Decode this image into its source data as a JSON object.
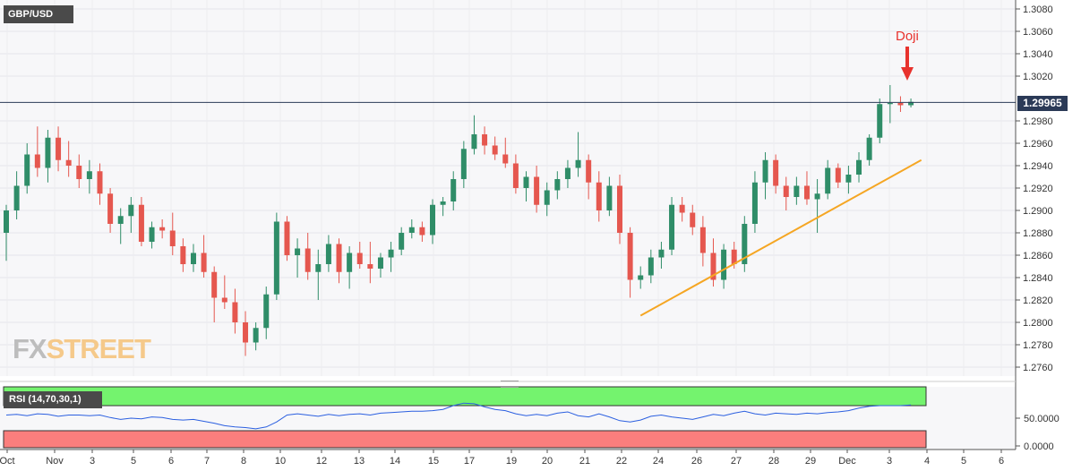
{
  "header": {
    "pair": "GBP/USD"
  },
  "price_tag": "1.29965",
  "annotation": {
    "label": "Doji",
    "color": "#e8322d"
  },
  "logo": {
    "part1": "FX",
    "part2": "STREET"
  },
  "rsi": {
    "label": "RSI (14,70,30,1)",
    "ticks": [
      "50.0000",
      "0.0000"
    ]
  },
  "colors": {
    "bull": "#2f8d68",
    "bear": "#e5574f",
    "trendline": "#f5a623",
    "rsi_line": "#2b5fe0",
    "overbought": "#74f36e",
    "oversold": "#fb7e7d"
  },
  "chart_data": {
    "type": "candlestick",
    "y_ticks": [
      "1.3080",
      "1.3060",
      "1.3040",
      "1.3020",
      "1.2980",
      "1.2960",
      "1.2940",
      "1.2920",
      "1.2900",
      "1.2880",
      "1.2860",
      "1.2840",
      "1.2820",
      "1.2800",
      "1.2780",
      "1.2760"
    ],
    "ylim": [
      1.2752,
      1.3088
    ],
    "x_labels": [
      "Oct",
      "Nov",
      "3",
      "5",
      "6",
      "7",
      "8",
      "10",
      "12",
      "13",
      "14",
      "15",
      "17",
      "19",
      "20",
      "21",
      "22",
      "24",
      "26",
      "27",
      "28",
      "29",
      "Dec",
      "3",
      "4",
      "5",
      "6"
    ],
    "last_price": 1.29965,
    "candles": [
      [
        1.288,
        1.2905,
        1.2855,
        1.29
      ],
      [
        1.29,
        1.2935,
        1.2892,
        1.2922
      ],
      [
        1.2922,
        1.296,
        1.2915,
        1.295
      ],
      [
        1.295,
        1.2975,
        1.293,
        1.2938
      ],
      [
        1.2938,
        1.2972,
        1.2925,
        1.2965
      ],
      [
        1.2965,
        1.2975,
        1.2935,
        1.2945
      ],
      [
        1.2945,
        1.2962,
        1.293,
        1.294
      ],
      [
        1.294,
        1.295,
        1.292,
        1.2928
      ],
      [
        1.2928,
        1.2945,
        1.2915,
        1.2935
      ],
      [
        1.2935,
        1.2942,
        1.2905,
        1.2915
      ],
      [
        1.2915,
        1.292,
        1.288,
        1.2888
      ],
      [
        1.2888,
        1.2902,
        1.287,
        1.2895
      ],
      [
        1.2895,
        1.2912,
        1.288,
        1.2905
      ],
      [
        1.2905,
        1.2912,
        1.2868,
        1.2872
      ],
      [
        1.2872,
        1.289,
        1.2866,
        1.2885
      ],
      [
        1.2885,
        1.2892,
        1.2875,
        1.2882
      ],
      [
        1.2882,
        1.2898,
        1.286,
        1.2868
      ],
      [
        1.2868,
        1.2875,
        1.2845,
        1.2852
      ],
      [
        1.2852,
        1.287,
        1.2845,
        1.2862
      ],
      [
        1.2862,
        1.2878,
        1.284,
        1.2845
      ],
      [
        1.2845,
        1.285,
        1.28,
        1.2822
      ],
      [
        1.2822,
        1.2842,
        1.2812,
        1.2818
      ],
      [
        1.2818,
        1.283,
        1.279,
        1.28
      ],
      [
        1.28,
        1.281,
        1.277,
        1.2782
      ],
      [
        1.2782,
        1.28,
        1.2775,
        1.2795
      ],
      [
        1.2795,
        1.2832,
        1.2785,
        1.2825
      ],
      [
        1.2825,
        1.2898,
        1.282,
        1.289
      ],
      [
        1.289,
        1.2895,
        1.2855,
        1.286
      ],
      [
        1.286,
        1.2875,
        1.284,
        1.2866
      ],
      [
        1.2866,
        1.288,
        1.2838,
        1.2845
      ],
      [
        1.2845,
        1.2865,
        1.282,
        1.2852
      ],
      [
        1.2852,
        1.2878,
        1.2845,
        1.287
      ],
      [
        1.287,
        1.2875,
        1.2835,
        1.2845
      ],
      [
        1.2845,
        1.2868,
        1.283,
        1.2862
      ],
      [
        1.2862,
        1.2872,
        1.2848,
        1.2852
      ],
      [
        1.2852,
        1.2872,
        1.2835,
        1.2848
      ],
      [
        1.2848,
        1.2862,
        1.284,
        1.2858
      ],
      [
        1.2858,
        1.2872,
        1.2845,
        1.2865
      ],
      [
        1.2865,
        1.2885,
        1.286,
        1.288
      ],
      [
        1.288,
        1.2892,
        1.2875,
        1.2885
      ],
      [
        1.2885,
        1.289,
        1.2872,
        1.2878
      ],
      [
        1.2878,
        1.291,
        1.287,
        1.2905
      ],
      [
        1.2905,
        1.2912,
        1.2895,
        1.2908
      ],
      [
        1.2908,
        1.2935,
        1.29,
        1.2928
      ],
      [
        1.2928,
        1.2962,
        1.292,
        1.2955
      ],
      [
        1.2955,
        1.2985,
        1.295,
        1.2968
      ],
      [
        1.2968,
        1.2975,
        1.295,
        1.2958
      ],
      [
        1.2958,
        1.2966,
        1.2945,
        1.295
      ],
      [
        1.295,
        1.2965,
        1.2938,
        1.2942
      ],
      [
        1.2942,
        1.295,
        1.2915,
        1.292
      ],
      [
        1.292,
        1.2935,
        1.2908,
        1.293
      ],
      [
        1.293,
        1.294,
        1.2898,
        1.2905
      ],
      [
        1.2905,
        1.2925,
        1.2895,
        1.2918
      ],
      [
        1.2918,
        1.2935,
        1.291,
        1.2928
      ],
      [
        1.2928,
        1.2945,
        1.292,
        1.2938
      ],
      [
        1.2938,
        1.297,
        1.293,
        1.2945
      ],
      [
        1.2945,
        1.295,
        1.291,
        1.2925
      ],
      [
        1.2925,
        1.2935,
        1.289,
        1.29
      ],
      [
        1.29,
        1.293,
        1.2895,
        1.2922
      ],
      [
        1.2922,
        1.2932,
        1.287,
        1.288
      ],
      [
        1.288,
        1.2885,
        1.2822,
        1.2838
      ],
      [
        1.2838,
        1.285,
        1.283,
        1.2842
      ],
      [
        1.2842,
        1.2865,
        1.2835,
        1.2858
      ],
      [
        1.2858,
        1.2872,
        1.2848,
        1.2865
      ],
      [
        1.2865,
        1.2912,
        1.286,
        1.2905
      ],
      [
        1.2905,
        1.2912,
        1.289,
        1.2898
      ],
      [
        1.2898,
        1.2905,
        1.2878,
        1.2885
      ],
      [
        1.2885,
        1.2895,
        1.285,
        1.2862
      ],
      [
        1.2862,
        1.2875,
        1.2832,
        1.2838
      ],
      [
        1.2838,
        1.287,
        1.283,
        1.2865
      ],
      [
        1.2865,
        1.2872,
        1.2848,
        1.2852
      ],
      [
        1.2852,
        1.2895,
        1.2845,
        1.2888
      ],
      [
        1.2888,
        1.2935,
        1.288,
        1.2925
      ],
      [
        1.2925,
        1.2952,
        1.291,
        1.2945
      ],
      [
        1.2945,
        1.295,
        1.2915,
        1.2922
      ],
      [
        1.2922,
        1.293,
        1.29,
        1.2912
      ],
      [
        1.2912,
        1.293,
        1.2905,
        1.2922
      ],
      [
        1.2922,
        1.2935,
        1.2905,
        1.291
      ],
      [
        1.291,
        1.2928,
        1.288,
        1.2915
      ],
      [
        1.2915,
        1.2945,
        1.291,
        1.2938
      ],
      [
        1.2938,
        1.2942,
        1.292,
        1.2925
      ],
      [
        1.2925,
        1.294,
        1.2915,
        1.2932
      ],
      [
        1.2932,
        1.2952,
        1.2925,
        1.2945
      ],
      [
        1.2945,
        1.2968,
        1.294,
        1.2965
      ],
      [
        1.2965,
        1.3,
        1.296,
        1.2995
      ],
      [
        1.2995,
        1.3012,
        1.2978,
        1.2996
      ],
      [
        1.2996,
        1.3002,
        1.2988,
        1.2994
      ],
      [
        1.2994,
        1.3,
        1.2992,
        1.2997
      ]
    ],
    "trendline": [
      [
        61,
        1.2806
      ],
      [
        88,
        1.2945
      ]
    ],
    "rsi_series": [
      55,
      56,
      54,
      57,
      56,
      53,
      55,
      55,
      54,
      55,
      51,
      48,
      50,
      49,
      52,
      51,
      48,
      47,
      48,
      45,
      42,
      38,
      36,
      35,
      33,
      36,
      44,
      55,
      57,
      55,
      53,
      56,
      54,
      56,
      57,
      55,
      58,
      59,
      60,
      61,
      61,
      62,
      64,
      70,
      74,
      73,
      68,
      64,
      62,
      57,
      54,
      56,
      54,
      58,
      60,
      54,
      52,
      57,
      52,
      46,
      44,
      47,
      53,
      55,
      52,
      50,
      48,
      52,
      56,
      54,
      58,
      61,
      57,
      55,
      58,
      57,
      56,
      58,
      57,
      59,
      60,
      62,
      66,
      69,
      70,
      70,
      70,
      71
    ]
  }
}
